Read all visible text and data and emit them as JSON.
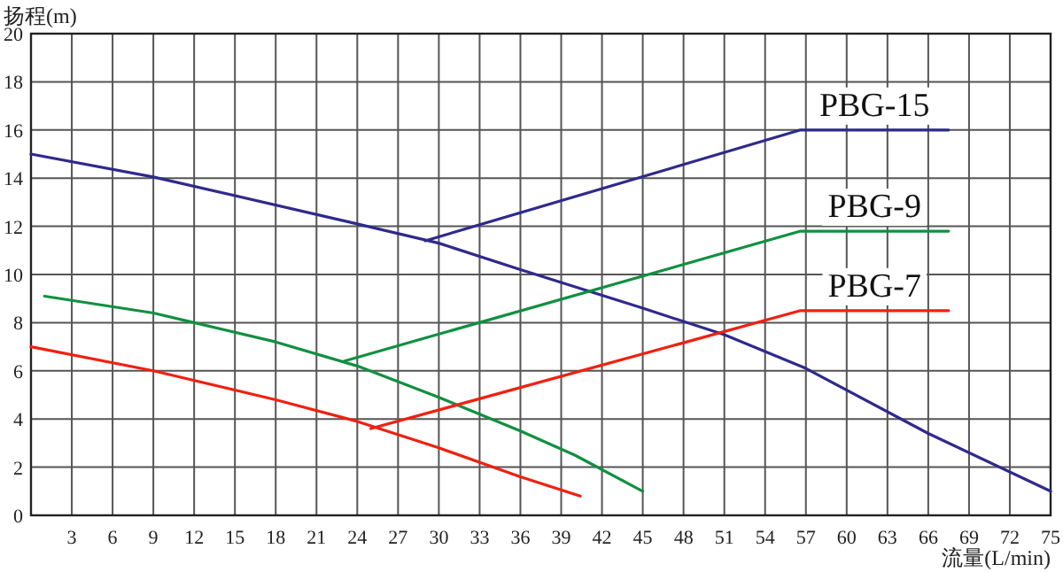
{
  "chart_data": {
    "type": "line",
    "xlabel": "流量(L/min)",
    "ylabel": "扬程(m)",
    "xlim": [
      0,
      75
    ],
    "ylim": [
      0,
      20
    ],
    "xticks": [
      3,
      6,
      9,
      12,
      15,
      18,
      21,
      24,
      27,
      30,
      33,
      36,
      39,
      42,
      45,
      48,
      51,
      54,
      57,
      60,
      63,
      66,
      69,
      72,
      75
    ],
    "yticks": [
      0,
      2,
      4,
      6,
      8,
      10,
      12,
      14,
      16,
      18,
      20
    ],
    "grid": true,
    "marker": "none",
    "line_style": "solid",
    "series": [
      {
        "color": "#2e2a8c",
        "x": [
          0,
          9,
          24,
          30,
          36,
          45,
          51,
          57,
          66,
          75
        ],
        "values": [
          15,
          14.05,
          12.1,
          11.3,
          10.2,
          8.6,
          7.5,
          6.1,
          3.4,
          1.0
        ]
      },
      {
        "name": "PBG-15",
        "color": "#2e2a8c",
        "x": [
          29,
          56.6,
          67.5
        ],
        "values": [
          11.4,
          16,
          16
        ]
      },
      {
        "color": "#109040",
        "x": [
          1,
          9,
          12,
          18,
          24,
          30,
          36,
          40,
          45
        ],
        "values": [
          9.1,
          8.4,
          8.0,
          7.2,
          6.2,
          4.9,
          3.5,
          2.5,
          1.0
        ]
      },
      {
        "name": "PBG-9",
        "color": "#109040",
        "x": [
          23,
          56.6,
          67.5
        ],
        "values": [
          6.4,
          11.8,
          11.8
        ]
      },
      {
        "color": "#f02010",
        "x": [
          0,
          9,
          18,
          24,
          30,
          36,
          40.4
        ],
        "values": [
          7.0,
          6.0,
          4.8,
          3.9,
          2.8,
          1.6,
          0.8
        ]
      },
      {
        "name": "PBG-7",
        "color": "#f02010",
        "x": [
          25,
          56.6,
          67.5
        ],
        "values": [
          3.6,
          8.5,
          8.5
        ]
      }
    ]
  }
}
